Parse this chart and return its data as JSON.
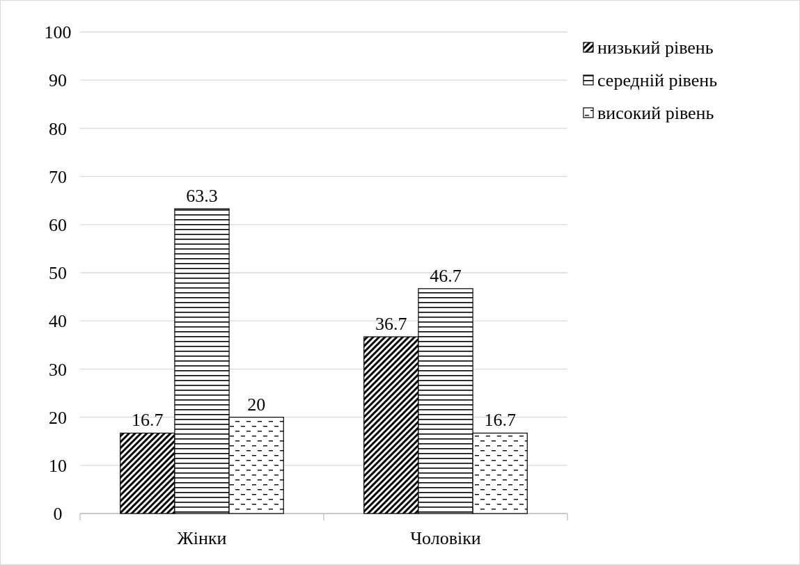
{
  "chart_data": {
    "type": "bar",
    "categories": [
      "Жінки",
      "Чоловіки"
    ],
    "series": [
      {
        "name": "низький рівень",
        "color": "#000000",
        "values": [
          16.7,
          36.7
        ]
      },
      {
        "name": "середній рівень",
        "color": "#000000",
        "values": [
          63.3,
          46.7
        ]
      },
      {
        "name": "високий рівень",
        "color": "#000000",
        "values": [
          20,
          16.7
        ]
      }
    ],
    "ylim": [
      0,
      100
    ],
    "yticks": [
      0,
      10,
      20,
      30,
      40,
      50,
      60,
      70,
      80,
      90,
      100
    ],
    "grid": "y",
    "legend": "top right",
    "data_labels": true
  }
}
